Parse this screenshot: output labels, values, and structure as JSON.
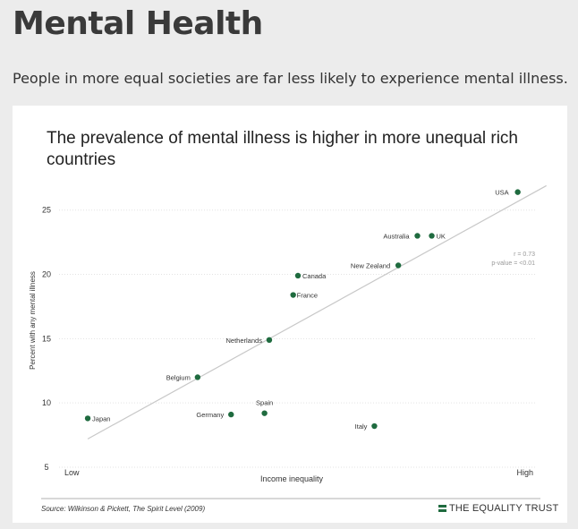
{
  "page": {
    "title": "Mental Health",
    "lead": "People in more equal societies are far less likely to experience mental illness."
  },
  "colors": {
    "point": "#1f6b3f",
    "trend": "#c8c8c8",
    "axis": "#333333",
    "grid": "#e3e3e3"
  },
  "chart_data": {
    "type": "scatter",
    "title": "The prevalence of mental illness is higher in more unequal rich countries",
    "xlabel": "Income inequality",
    "ylabel": "Percent with any mental illness",
    "x_tick_labels": [
      "Low",
      "High"
    ],
    "y_ticks": [
      5,
      10,
      15,
      20,
      25
    ],
    "ylim": [
      5,
      27
    ],
    "xlim": [
      0,
      10
    ],
    "grid": "horizontal dotted",
    "points": [
      {
        "label": "Japan",
        "x": 0.6,
        "y": 8.8
      },
      {
        "label": "Germany",
        "x": 3.6,
        "y": 9.1
      },
      {
        "label": "Spain",
        "x": 4.3,
        "y": 9.2
      },
      {
        "label": "Belgium",
        "x": 2.9,
        "y": 12.0
      },
      {
        "label": "Italy",
        "x": 6.6,
        "y": 8.2
      },
      {
        "label": "Netherlands",
        "x": 4.4,
        "y": 14.9
      },
      {
        "label": "France",
        "x": 4.9,
        "y": 18.4
      },
      {
        "label": "Canada",
        "x": 5.0,
        "y": 19.9
      },
      {
        "label": "New Zealand",
        "x": 7.1,
        "y": 20.7
      },
      {
        "label": "Australia",
        "x": 7.5,
        "y": 23.0
      },
      {
        "label": "UK",
        "x": 7.8,
        "y": 23.0
      },
      {
        "label": "USA",
        "x": 9.6,
        "y": 26.4
      }
    ],
    "trendline": [
      {
        "x": 0.6,
        "y": 7.2
      },
      {
        "x": 10.2,
        "y": 26.9
      }
    ],
    "stats": [
      "r = 0.73",
      "p-value = <0.01"
    ],
    "source": "Source: Wilkinson & Pickett, The Spirit Level (2009)",
    "brand": "THE EQUALITY TRUST"
  }
}
